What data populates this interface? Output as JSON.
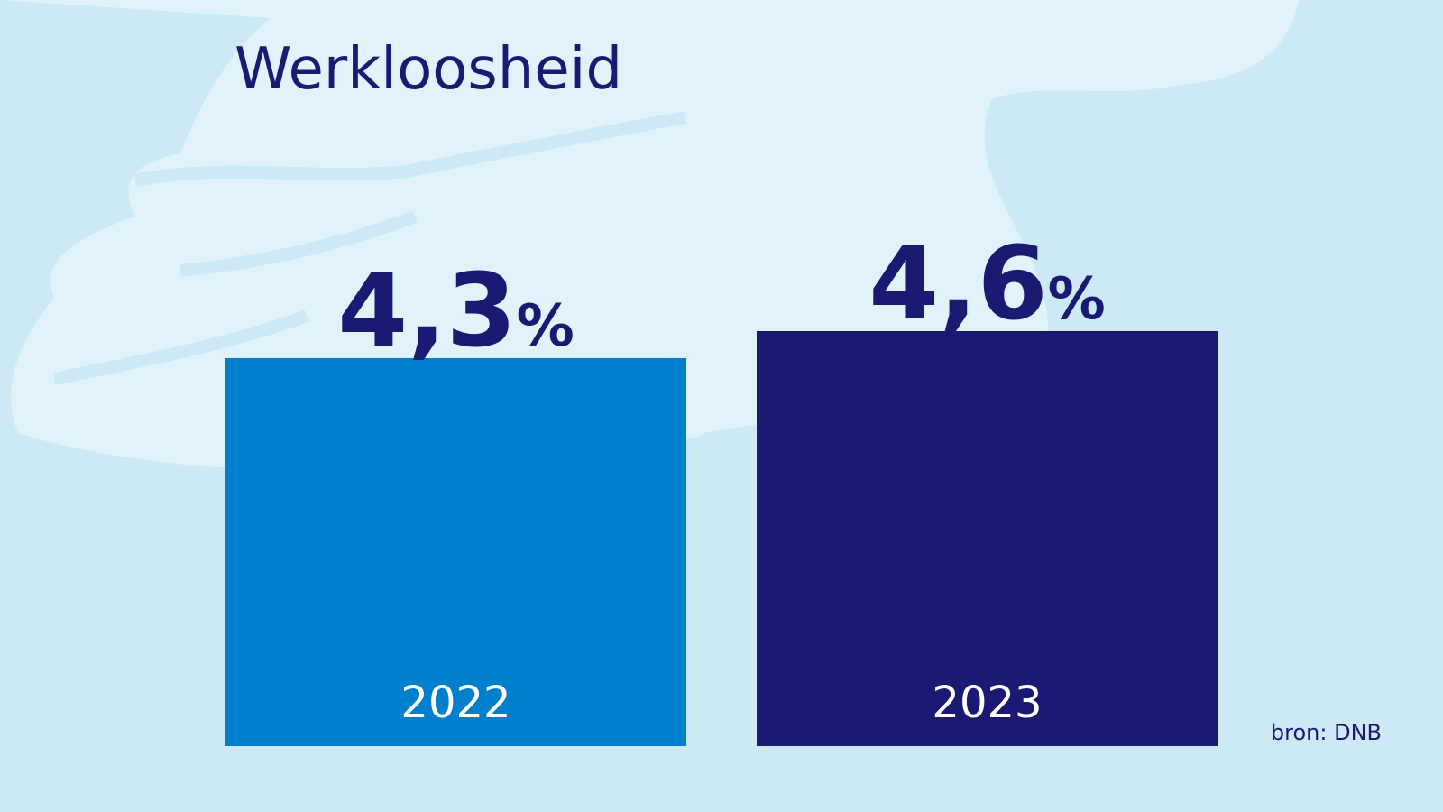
{
  "chart_data": {
    "type": "bar",
    "title": "Werkloosheid",
    "categories": [
      "2022",
      "2023"
    ],
    "values": [
      4.3,
      4.6
    ],
    "value_labels": [
      "4,3%",
      "4,6%"
    ],
    "colors": [
      "#0080cc",
      "#1a1a73"
    ],
    "source": "bron: DNB"
  }
}
